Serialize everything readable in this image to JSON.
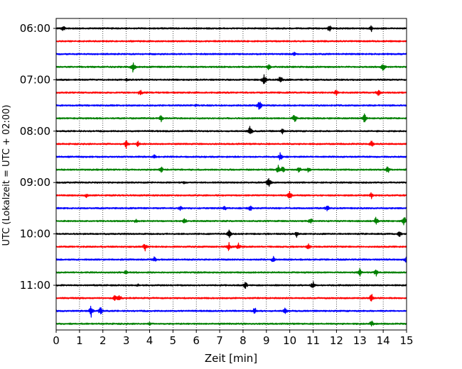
{
  "chart_data": {
    "type": "line",
    "title": "",
    "xlabel": "Zeit  [min]",
    "ylabel": "UTC (Lokalzeit = UTC + 02:00)",
    "xlim": [
      0,
      15
    ],
    "x_ticks": [
      0,
      1,
      2,
      3,
      4,
      5,
      6,
      7,
      8,
      9,
      10,
      11,
      12,
      13,
      14,
      15
    ],
    "y_ticks": [
      {
        "label": "06:00",
        "trace_index": 0
      },
      {
        "label": "07:00",
        "trace_index": 4
      },
      {
        "label": "08:00",
        "trace_index": 8
      },
      {
        "label": "09:00",
        "trace_index": 12
      },
      {
        "label": "10:00",
        "trace_index": 16
      },
      {
        "label": "11:00",
        "trace_index": 20
      }
    ],
    "grid": "vertical dotted at each minute",
    "trace_interval_minutes": 15,
    "color_cycle": [
      "#000000",
      "#ff0000",
      "#0000ff",
      "#008000"
    ],
    "traces": [
      {
        "start": "06:00",
        "events": [
          [
            0.3,
            5
          ],
          [
            11.7,
            6
          ],
          [
            13.5,
            5
          ]
        ]
      },
      {
        "start": "06:15",
        "events": []
      },
      {
        "start": "06:30",
        "events": [
          [
            10.2,
            4
          ]
        ]
      },
      {
        "start": "06:45",
        "events": [
          [
            3.3,
            9
          ],
          [
            9.1,
            6
          ],
          [
            14.0,
            7
          ]
        ]
      },
      {
        "start": "07:00",
        "events": [
          [
            8.9,
            9
          ],
          [
            9.6,
            8
          ],
          [
            3.0,
            3
          ]
        ]
      },
      {
        "start": "07:15",
        "events": [
          [
            3.6,
            6
          ],
          [
            12.0,
            6
          ],
          [
            13.8,
            7
          ]
        ]
      },
      {
        "start": "07:30",
        "events": [
          [
            8.7,
            8
          ],
          [
            6.0,
            3
          ]
        ]
      },
      {
        "start": "07:45",
        "events": [
          [
            4.5,
            6
          ],
          [
            10.2,
            8
          ],
          [
            13.2,
            7
          ]
        ]
      },
      {
        "start": "08:00",
        "events": [
          [
            8.3,
            8
          ],
          [
            9.7,
            5
          ]
        ]
      },
      {
        "start": "08:15",
        "events": [
          [
            3.0,
            7
          ],
          [
            3.5,
            5
          ],
          [
            13.5,
            6
          ]
        ]
      },
      {
        "start": "08:30",
        "events": [
          [
            4.2,
            4
          ],
          [
            9.6,
            7
          ]
        ]
      },
      {
        "start": "08:45",
        "events": [
          [
            4.5,
            5
          ],
          [
            9.5,
            7
          ],
          [
            9.7,
            6
          ],
          [
            10.4,
            5
          ],
          [
            10.8,
            5
          ],
          [
            14.2,
            6
          ]
        ]
      },
      {
        "start": "09:00",
        "events": [
          [
            9.1,
            8
          ],
          [
            5.5,
            3
          ]
        ]
      },
      {
        "start": "09:15",
        "events": [
          [
            10.0,
            7
          ],
          [
            1.3,
            4
          ],
          [
            13.5,
            5
          ]
        ]
      },
      {
        "start": "09:30",
        "events": [
          [
            5.3,
            5
          ],
          [
            7.2,
            5
          ],
          [
            8.3,
            6
          ],
          [
            11.6,
            6
          ]
        ]
      },
      {
        "start": "09:45",
        "events": [
          [
            3.4,
            4
          ],
          [
            5.5,
            5
          ],
          [
            10.9,
            6
          ],
          [
            13.7,
            7
          ],
          [
            14.9,
            8
          ]
        ]
      },
      {
        "start": "10:00",
        "events": [
          [
            7.4,
            7
          ],
          [
            10.3,
            5
          ],
          [
            14.7,
            5
          ]
        ]
      },
      {
        "start": "10:15",
        "events": [
          [
            3.8,
            7
          ],
          [
            7.4,
            8
          ],
          [
            7.8,
            6
          ],
          [
            10.8,
            5
          ]
        ]
      },
      {
        "start": "10:30",
        "events": [
          [
            4.2,
            5
          ],
          [
            9.3,
            6
          ],
          [
            15.0,
            7
          ]
        ]
      },
      {
        "start": "10:45",
        "events": [
          [
            3.0,
            5
          ],
          [
            13.0,
            6
          ],
          [
            13.7,
            6
          ]
        ]
      },
      {
        "start": "11:00",
        "events": [
          [
            8.1,
            6
          ],
          [
            11.0,
            7
          ],
          [
            3.5,
            3
          ]
        ]
      },
      {
        "start": "11:15",
        "events": [
          [
            2.5,
            6
          ],
          [
            2.7,
            6
          ],
          [
            13.5,
            7
          ]
        ]
      },
      {
        "start": "11:30",
        "events": [
          [
            1.5,
            9
          ],
          [
            1.9,
            7
          ],
          [
            8.5,
            6
          ],
          [
            9.8,
            6
          ]
        ]
      },
      {
        "start": "11:45",
        "events": [
          [
            13.5,
            6
          ],
          [
            4.0,
            3
          ]
        ]
      }
    ]
  }
}
